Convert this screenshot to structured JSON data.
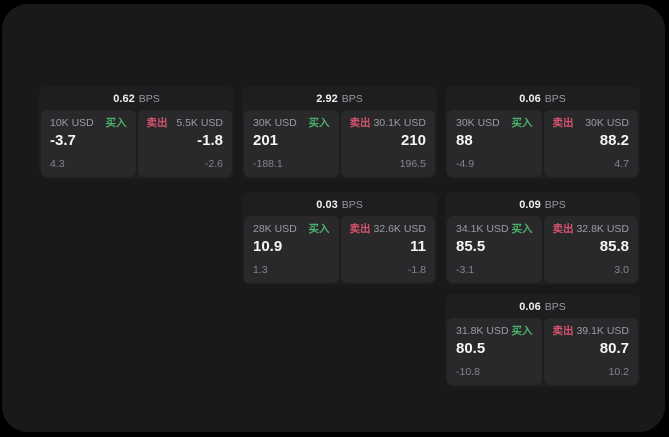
{
  "labels": {
    "buy": "买入",
    "sell": "卖出",
    "bps_suffix": "BPS"
  },
  "colors": {
    "buy_accent": "#4caf68",
    "sell_accent": "#d4536c",
    "screen_background": "#19191b",
    "card_background": "#1e1e20",
    "panel_background": "#29292c"
  },
  "cards": [
    {
      "bps": "0.62",
      "row": 1,
      "col": 1,
      "buy": {
        "amount": "10K USD",
        "value": "-3.7",
        "sub": "4.3"
      },
      "sell": {
        "amount": "5.5K USD",
        "value": "-1.8",
        "sub": "-2.6"
      }
    },
    {
      "bps": "2.92",
      "row": 1,
      "col": 2,
      "buy": {
        "amount": "30K USD",
        "value": "201",
        "sub": "-188.1"
      },
      "sell": {
        "amount": "30.1K USD",
        "value": "210",
        "sub": "196.5"
      }
    },
    {
      "bps": "0.06",
      "row": 1,
      "col": 3,
      "buy": {
        "amount": "30K USD",
        "value": "88",
        "sub": "-4.9"
      },
      "sell": {
        "amount": "30K USD",
        "value": "88.2",
        "sub": "4.7"
      }
    },
    {
      "bps": "0.03",
      "row": 2,
      "col": 2,
      "buy": {
        "amount": "28K USD",
        "value": "10.9",
        "sub": "1.3"
      },
      "sell": {
        "amount": "32.6K USD",
        "value": "11",
        "sub": "-1.8"
      }
    },
    {
      "bps": "0.09",
      "row": 2,
      "col": 3,
      "buy": {
        "amount": "34.1K USD",
        "value": "85.5",
        "sub": "-3.1"
      },
      "sell": {
        "amount": "32.8K USD",
        "value": "85.8",
        "sub": "3.0"
      }
    },
    {
      "bps": "0.06",
      "row": 3,
      "col": 3,
      "buy": {
        "amount": "31.8K USD",
        "value": "80.5",
        "sub": "-10.8"
      },
      "sell": {
        "amount": "39.1K USD",
        "value": "80.7",
        "sub": "10.2"
      }
    }
  ]
}
